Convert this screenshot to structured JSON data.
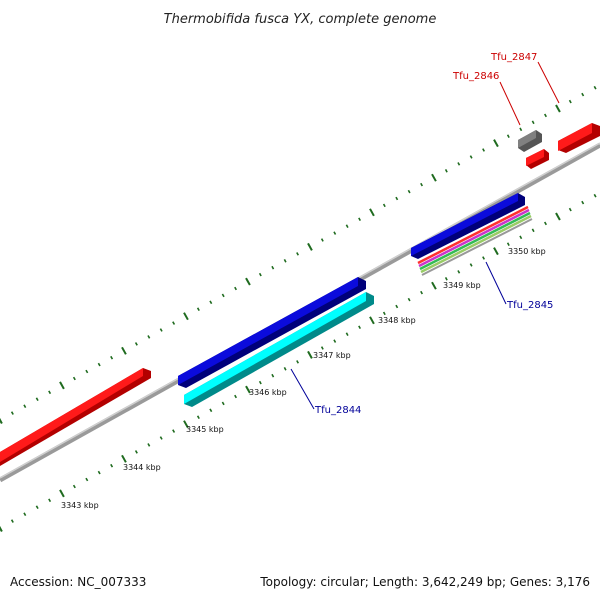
{
  "header": {
    "title": "Thermobifida fusca YX, complete genome"
  },
  "footer": {
    "accession": "Accession: NC_007333",
    "summary": "Topology: circular; Length: 3,642,249 bp; Genes: 3,176"
  },
  "ruler": {
    "unit": "kbp",
    "ticks": [
      {
        "label": "3343 kbp"
      },
      {
        "label": "3344 kbp"
      },
      {
        "label": "3345 kbp"
      },
      {
        "label": "3346 kbp"
      },
      {
        "label": "3347 kbp"
      },
      {
        "label": "3348 kbp"
      },
      {
        "label": "3349 kbp"
      },
      {
        "label": "3350 kbp"
      }
    ]
  },
  "genes": {
    "tfu_2844": {
      "label": "Tfu_2844",
      "color": "#000099"
    },
    "tfu_2845": {
      "label": "Tfu_2845",
      "color": "#000099"
    },
    "tfu_2846": {
      "label": "Tfu_2846",
      "color": "#cc0000"
    },
    "tfu_2847": {
      "label": "Tfu_2847",
      "color": "#cc0000"
    }
  },
  "colors": {
    "backbone": "#9a9a9a",
    "tick": "#1f6b1f",
    "feature_red": "#ff1a1a",
    "feature_blue": "#0b0bdc",
    "feature_cyan": "#00ffff",
    "feature_gray": "#777777"
  }
}
